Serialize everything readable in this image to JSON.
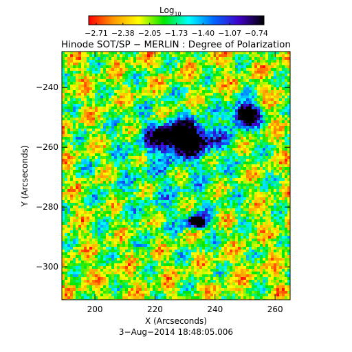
{
  "colorbar": {
    "label": "Log",
    "label_subscript": "10",
    "ticks": [
      "−2.71",
      "−2.38",
      "−2.05",
      "−1.73",
      "−1.40",
      "−1.07",
      "−0.74"
    ],
    "colormap": [
      "#ff0000",
      "#ff9a00",
      "#ffff00",
      "#00e600",
      "#00ffff",
      "#0066ff",
      "#4000c8",
      "#000000"
    ]
  },
  "chart_data": {
    "type": "heatmap",
    "title": "Hinode SOT/SP − MERLIN : Degree of Polarization",
    "xlabel": "X (Arcseconds)",
    "ylabel": "Y (Arcseconds)",
    "xlim": [
      189,
      265
    ],
    "ylim": [
      -311,
      -228
    ],
    "xticks": [
      200,
      220,
      240,
      260
    ],
    "yticks": [
      -240,
      -260,
      -280,
      -300
    ],
    "xtick_labels": [
      "200",
      "220",
      "240",
      "260"
    ],
    "ytick_labels": [
      "−240",
      "−260",
      "−280",
      "−300"
    ],
    "value_range": [
      -2.71,
      -0.74
    ],
    "value_label": "Log10",
    "dark_regions": [
      {
        "x": 229,
        "y": -257
      },
      {
        "x": 250,
        "y": -249
      },
      {
        "x": 234,
        "y": -285
      }
    ]
  },
  "footer": {
    "timestamp": "3−Aug−2014 18:48:05.006"
  }
}
